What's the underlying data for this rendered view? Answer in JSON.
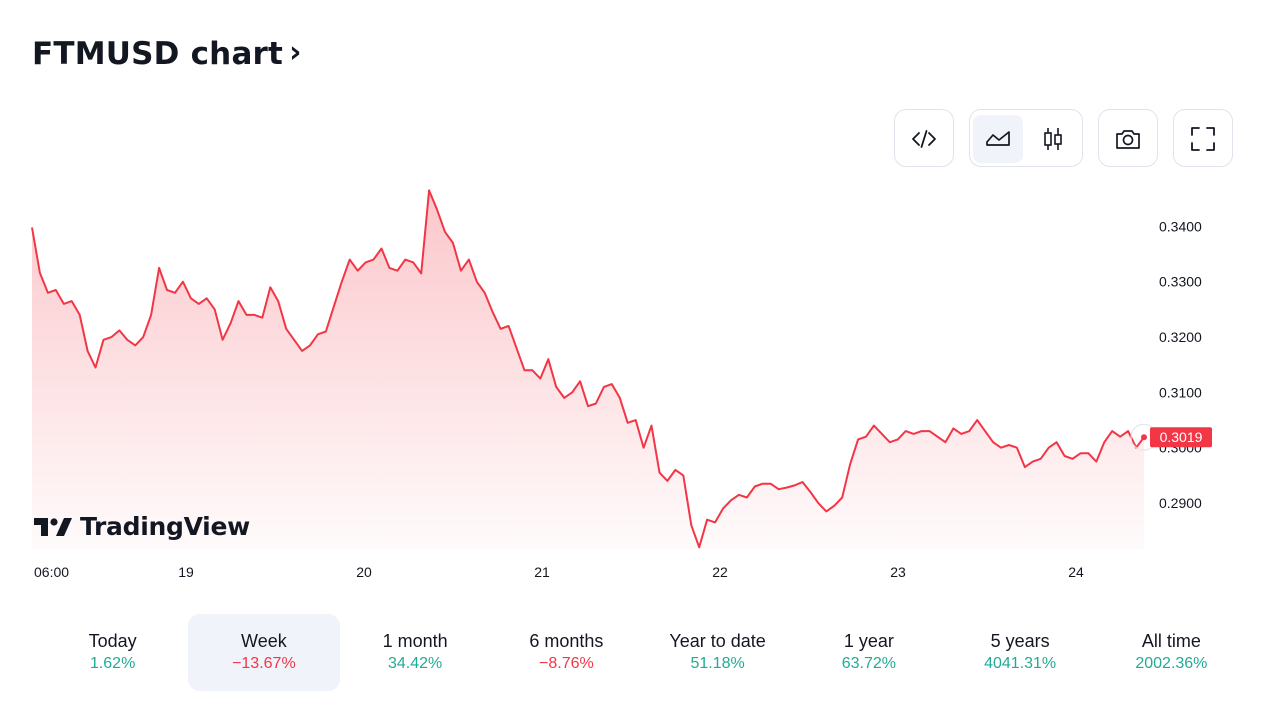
{
  "header": {
    "title": "FTMUSD chart",
    "chevron": "›"
  },
  "toolbar": {
    "buttons": [
      {
        "name": "embed",
        "icon": "code-icon"
      },
      {
        "name": "area-chart",
        "icon": "area-chart-icon",
        "active": true
      },
      {
        "name": "candles",
        "icon": "candlestick-icon",
        "active": false
      },
      {
        "name": "snapshot",
        "icon": "camera-icon"
      },
      {
        "name": "fullscreen",
        "icon": "fullscreen-icon"
      }
    ]
  },
  "logo": {
    "text": "TradingView"
  },
  "chart_data": {
    "type": "area",
    "symbol": "FTMUSD",
    "x_ticks": [
      "06:00",
      "19",
      "20",
      "21",
      "22",
      "23",
      "24"
    ],
    "y_ticks": [
      "0.2900",
      "0.3000",
      "0.3100",
      "0.3200",
      "0.3300",
      "0.3400"
    ],
    "ylim": [
      0.2817,
      0.3473
    ],
    "last_price": "0.3019",
    "line_color": "#f23645",
    "x": [
      0,
      1,
      2,
      3,
      4,
      5,
      6,
      7,
      8,
      9,
      10,
      11,
      12,
      13,
      14,
      15,
      16,
      17,
      18,
      19,
      20,
      21,
      22,
      23,
      24,
      25,
      26,
      27,
      28,
      29,
      30,
      31,
      32,
      33,
      34,
      35,
      36,
      37,
      38,
      39,
      40,
      41,
      42,
      43,
      44,
      45,
      46,
      47,
      48,
      49,
      50,
      51,
      52,
      53,
      54,
      55,
      56,
      57,
      58,
      59,
      60,
      61,
      62,
      63,
      64,
      65,
      66,
      67,
      68,
      69,
      70,
      71,
      72,
      73,
      74,
      75,
      76,
      77,
      78,
      79,
      80,
      81,
      82,
      83,
      84,
      85,
      86,
      87,
      88,
      89,
      90,
      91,
      92,
      93,
      94,
      95,
      96,
      97,
      98,
      99,
      100,
      101,
      102,
      103,
      104,
      105,
      106,
      107,
      108,
      109,
      110,
      111,
      112,
      113,
      114,
      115,
      116,
      117,
      118,
      119,
      120,
      121,
      122,
      123,
      124,
      125,
      126,
      127,
      128,
      129,
      130,
      131,
      132,
      133,
      134,
      135,
      136,
      137,
      138,
      139,
      140
    ],
    "values": [
      0.3398,
      0.3316,
      0.328,
      0.3285,
      0.326,
      0.3265,
      0.324,
      0.3175,
      0.3145,
      0.3195,
      0.32,
      0.3212,
      0.3195,
      0.3185,
      0.32,
      0.324,
      0.3325,
      0.3285,
      0.328,
      0.33,
      0.327,
      0.326,
      0.327,
      0.325,
      0.3195,
      0.3225,
      0.3265,
      0.324,
      0.324,
      0.3235,
      0.329,
      0.3265,
      0.3215,
      0.3195,
      0.3175,
      0.3185,
      0.3205,
      0.321,
      0.3255,
      0.33,
      0.334,
      0.332,
      0.3335,
      0.334,
      0.336,
      0.3325,
      0.332,
      0.334,
      0.3335,
      0.3315,
      0.3465,
      0.343,
      0.339,
      0.337,
      0.332,
      0.334,
      0.33,
      0.328,
      0.3245,
      0.3215,
      0.322,
      0.318,
      0.314,
      0.314,
      0.3125,
      0.316,
      0.311,
      0.309,
      0.31,
      0.312,
      0.3075,
      0.308,
      0.311,
      0.3115,
      0.309,
      0.3045,
      0.305,
      0.3,
      0.304,
      0.2955,
      0.294,
      0.296,
      0.295,
      0.286,
      0.282,
      0.287,
      0.2865,
      0.289,
      0.2905,
      0.2915,
      0.291,
      0.293,
      0.2935,
      0.2935,
      0.2925,
      0.2928,
      0.2932,
      0.2938,
      0.292,
      0.29,
      0.2885,
      0.2895,
      0.291,
      0.297,
      0.3015,
      0.302,
      0.304,
      0.3025,
      0.301,
      0.3015,
      0.303,
      0.3025,
      0.303,
      0.303,
      0.302,
      0.301,
      0.3035,
      0.3025,
      0.303,
      0.305,
      0.303,
      0.301,
      0.3,
      0.3005,
      0.3,
      0.2965,
      0.2975,
      0.298,
      0.3,
      0.301,
      0.2985,
      0.298,
      0.299,
      0.299,
      0.2975,
      0.301,
      0.303,
      0.302,
      0.303,
      0.3,
      0.3019
    ]
  },
  "periods": [
    {
      "label": "Today",
      "value": "1.62%",
      "sign": "pos",
      "active": false
    },
    {
      "label": "Week",
      "value": "−13.67%",
      "sign": "neg",
      "active": true
    },
    {
      "label": "1 month",
      "value": "34.42%",
      "sign": "pos",
      "active": false
    },
    {
      "label": "6 months",
      "value": "−8.76%",
      "sign": "neg",
      "active": false
    },
    {
      "label": "Year to date",
      "value": "51.18%",
      "sign": "pos",
      "active": false
    },
    {
      "label": "1 year",
      "value": "63.72%",
      "sign": "pos",
      "active": false
    },
    {
      "label": "5 years",
      "value": "4041.31%",
      "sign": "pos",
      "active": false
    },
    {
      "label": "All time",
      "value": "2002.36%",
      "sign": "pos",
      "active": false
    }
  ]
}
